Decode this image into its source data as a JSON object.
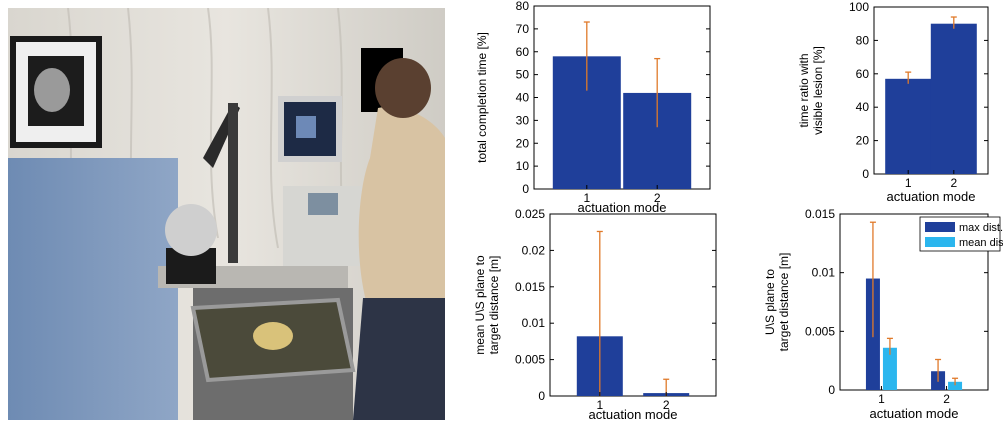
{
  "photo": {
    "description_icon": "lab-setup-photo"
  },
  "colors": {
    "bar": "#1f3f9a",
    "bar2": "#2bb6ee",
    "error": "#e07a2a",
    "axis": "#000000"
  },
  "chart_data": [
    {
      "type": "bar",
      "categories": [
        "1",
        "2"
      ],
      "values": [
        58,
        42
      ],
      "errors": [
        [
          43,
          73
        ],
        [
          27,
          57
        ]
      ],
      "xlabel": "actuation mode",
      "ylabel": "total completion time [%]",
      "ylim": [
        0,
        80
      ],
      "yticks": [
        "0",
        "10",
        "20",
        "30",
        "40",
        "50",
        "60",
        "70",
        "80"
      ],
      "grid": false
    },
    {
      "type": "bar",
      "categories": [
        "1",
        "2"
      ],
      "values": [
        57,
        90
      ],
      "errors": [
        [
          54,
          61
        ],
        [
          87,
          94
        ]
      ],
      "xlabel": "actuation mode",
      "ylabel": "time ratio with visible lesion [%]",
      "ylabel_lines": [
        "time ratio with",
        "visible lesion [%]"
      ],
      "ylim": [
        0,
        100
      ],
      "yticks": [
        "0",
        "20",
        "40",
        "60",
        "80",
        "100"
      ],
      "grid": false
    },
    {
      "type": "bar",
      "categories": [
        "1",
        "2"
      ],
      "values": [
        0.0082,
        0.0004
      ],
      "errors": [
        [
          0.0,
          0.0226
        ],
        [
          0.0,
          0.0023
        ]
      ],
      "xlabel": "actuation mode",
      "ylabel": "mean U\\S plane to target distance [m]",
      "ylabel_lines": [
        "mean U\\S plane to",
        "target distance [m]"
      ],
      "ylim": [
        0,
        0.025
      ],
      "yticks": [
        "0",
        "0.005",
        "0.01",
        "0.015",
        "0.02",
        "0.025"
      ],
      "grid": false
    },
    {
      "type": "bar",
      "categories": [
        "1",
        "2"
      ],
      "series": [
        {
          "name": "max dist.",
          "values": [
            0.0095,
            0.0016
          ],
          "errors": [
            [
              0.0045,
              0.0143
            ],
            [
              0.0007,
              0.0026
            ]
          ]
        },
        {
          "name": "mean dist.",
          "values": [
            0.0036,
            0.0007
          ],
          "errors": [
            [
              0.003,
              0.0044
            ],
            [
              0.0004,
              0.001
            ]
          ]
        }
      ],
      "xlabel": "actuation mode",
      "ylabel": "U\\S plane to target distance [m]",
      "ylabel_lines": [
        "U\\S plane to",
        "target distance [m]"
      ],
      "ylim": [
        0,
        0.015
      ],
      "yticks": [
        "0",
        "0.005",
        "0.01",
        "0.015"
      ],
      "legend": "top-right",
      "grid": false
    }
  ]
}
